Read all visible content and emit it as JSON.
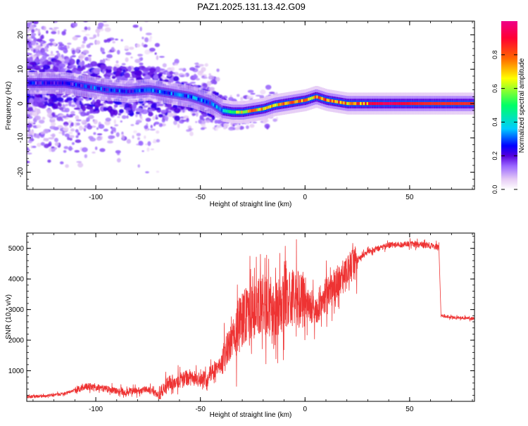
{
  "page": {
    "title": "PAZ1.2025.131.13.42.G09"
  },
  "chart_data": [
    {
      "type": "heatmap",
      "xlabel": "Height of straight line (km)",
      "ylabel": "Frequency (Hz)",
      "xlim": [
        -133,
        81
      ],
      "ylim": [
        -25,
        24
      ],
      "xticks": [
        -100,
        -50,
        0,
        50
      ],
      "yticks": [
        20,
        10,
        0,
        -10,
        -20
      ],
      "colorbar": {
        "label": "Normalized spectral amplitude",
        "range": [
          0,
          1
        ],
        "ticks": [
          "0.0",
          "0.2",
          "0.4",
          "0.6",
          "0.8"
        ],
        "colormap": [
          "#ffffff",
          "#e6ccf5",
          "#9966ff",
          "#5500dd",
          "#0000ff",
          "#00ccff",
          "#00ff66",
          "#ffff00",
          "#ff6600",
          "#ff0033",
          "#ee0088"
        ]
      },
      "ridge": {
        "x": [
          -115,
          -105,
          -95,
          -85,
          -75,
          -65,
          -55,
          -45,
          -40,
          -35,
          -30,
          -25,
          -20,
          -15,
          -10,
          -5,
          0,
          5,
          10,
          15,
          20,
          30,
          40,
          50,
          60,
          70,
          81
        ],
        "y": [
          6,
          5,
          4,
          3.5,
          4,
          3,
          2,
          0,
          -2,
          -2.5,
          -2.5,
          -2,
          -1.5,
          -0.5,
          0,
          0.5,
          1,
          2,
          1,
          0.5,
          0,
          0,
          0,
          0,
          0,
          0,
          0
        ],
        "peak_amplitude": [
          0.25,
          0.28,
          0.3,
          0.28,
          0.3,
          0.32,
          0.35,
          0.3,
          0.45,
          0.55,
          0.7,
          0.8,
          0.7,
          0.75,
          0.85,
          0.8,
          0.75,
          0.85,
          0.85,
          0.8,
          0.8,
          0.9,
          0.95,
          0.88,
          0.85,
          0.85,
          0.85
        ]
      }
    },
    {
      "type": "line",
      "xlabel": "Height of straight line (km)",
      "ylabel": "SNR (10 * v/v)",
      "xlim": [
        -133,
        81
      ],
      "ylim": [
        0,
        5500
      ],
      "xticks": [
        -100,
        -50,
        0,
        50
      ],
      "yticks": [
        1000,
        2000,
        3000,
        4000,
        5000
      ],
      "color": "#ee3333",
      "series": [
        {
          "x": [
            -133,
            -125,
            -115,
            -105,
            -95,
            -85,
            -75,
            -70,
            -65,
            -60,
            -55,
            -50,
            -45,
            -40,
            -36,
            -33,
            -30,
            -25,
            -20,
            -15,
            -10,
            -5,
            0,
            5,
            10,
            15,
            20,
            25,
            30,
            40,
            50,
            60,
            64,
            65,
            70,
            81
          ],
          "y": [
            150,
            170,
            250,
            500,
            400,
            300,
            400,
            200,
            600,
            700,
            800,
            700,
            900,
            1200,
            1900,
            2300,
            2700,
            2900,
            3200,
            2800,
            3300,
            3400,
            3300,
            3000,
            3500,
            3800,
            4200,
            4600,
            4900,
            5100,
            5150,
            5100,
            5050,
            2800,
            2750,
            2700
          ]
        }
      ]
    }
  ]
}
